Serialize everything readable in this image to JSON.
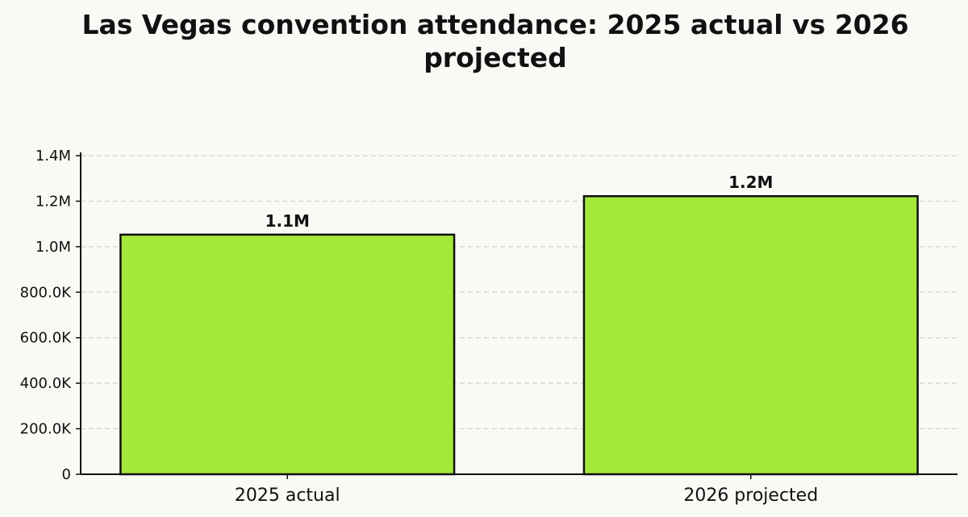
{
  "chart_data": {
    "type": "bar",
    "title": "Las Vegas convention attendance: 2025 actual vs 2026 projected",
    "title_lines": [
      "Las Vegas convention attendance: 2025 actual vs 2026",
      "projected"
    ],
    "categories": [
      "2025 actual",
      "2026 projected"
    ],
    "values": [
      1053000,
      1222000
    ],
    "data_labels": [
      "1.1M",
      "1.2M"
    ],
    "xlabel": "",
    "ylabel": "",
    "ylim": [
      0,
      1400000
    ],
    "yticks": [
      0,
      200000,
      400000,
      600000,
      800000,
      1000000,
      1200000,
      1400000
    ],
    "ytick_labels": [
      "0",
      "200.0K",
      "400.0K",
      "600.0K",
      "800.0K",
      "1.0M",
      "1.2M",
      "1.4M"
    ],
    "grid": "y dashed",
    "legend": "none",
    "colors": {
      "bar": "#a4e83a",
      "bar_edge": "#111111",
      "grid": "#d0d0d0",
      "background": "#f9f9f5",
      "text": "#111111"
    }
  }
}
